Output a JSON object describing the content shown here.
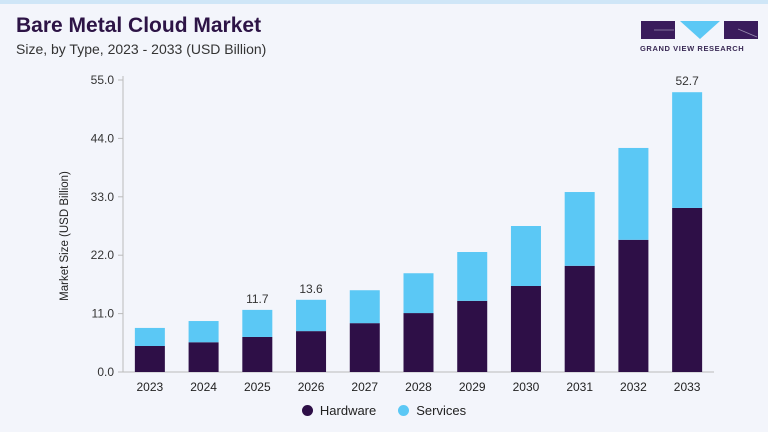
{
  "header": {
    "title": "Bare Metal Cloud Market",
    "subtitle": "Size, by Type, 2023 - 2033 (USD Billion)"
  },
  "logo": {
    "text": "GRAND VIEW RESEARCH"
  },
  "chart_data": {
    "type": "bar",
    "stacked": true,
    "categories": [
      "2023",
      "2024",
      "2025",
      "2026",
      "2027",
      "2028",
      "2029",
      "2030",
      "2031",
      "2032",
      "2033"
    ],
    "series": [
      {
        "name": "Hardware",
        "color": "#2e0f47",
        "values": [
          4.9,
          5.6,
          6.6,
          7.7,
          9.2,
          11.1,
          13.4,
          16.2,
          20.0,
          24.9,
          30.9
        ]
      },
      {
        "name": "Services",
        "color": "#5bc8f5",
        "values": [
          3.4,
          4.0,
          5.1,
          5.9,
          6.2,
          7.5,
          9.2,
          11.3,
          13.9,
          17.3,
          21.8
        ]
      }
    ],
    "data_labels": {
      "2025": "11.7",
      "2026": "13.6",
      "2033": "52.7"
    },
    "ylabel": "Market Size (USD Billion)",
    "xlabel": "",
    "ylim": [
      0,
      55
    ],
    "yticks": [
      "0.0",
      "11.0",
      "22.0",
      "33.0",
      "44.0",
      "55.0"
    ],
    "grid": false,
    "legend_position": "bottom"
  }
}
